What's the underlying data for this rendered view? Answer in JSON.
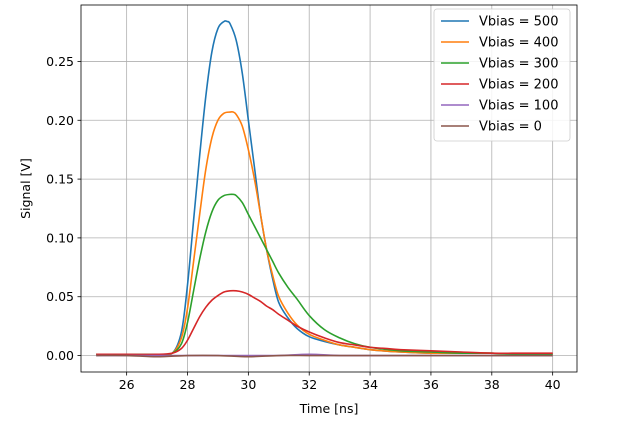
{
  "chart_data": {
    "type": "line",
    "title": "",
    "xlabel": "Time [ns]",
    "ylabel": "Signal [V]",
    "xlim": [
      24.5,
      40.8
    ],
    "ylim": [
      -0.014,
      0.298
    ],
    "xticks": [
      26,
      28,
      30,
      32,
      34,
      36,
      38,
      40
    ],
    "yticks": [
      0.0,
      0.05,
      0.1,
      0.15,
      0.2,
      0.25
    ],
    "ytick_labels": [
      "0.00",
      "0.05",
      "0.10",
      "0.15",
      "0.20",
      "0.25"
    ],
    "grid": true,
    "legend_position": "top-right",
    "series": [
      {
        "name": "Vbias = 500",
        "color": "#1f77b4",
        "x": [
          25.0,
          26.0,
          27.0,
          27.5,
          27.8,
          28.0,
          28.2,
          28.4,
          28.6,
          28.8,
          29.0,
          29.2,
          29.3,
          29.4,
          29.6,
          29.8,
          30.0,
          30.2,
          30.4,
          30.6,
          30.8,
          31.0,
          31.3,
          31.6,
          32.0,
          32.5,
          33.0,
          33.5,
          34.0,
          35.0,
          36.0,
          37.0,
          38.0,
          39.0,
          40.0
        ],
        "y": [
          0.001,
          0.001,
          0.001,
          0.002,
          0.02,
          0.06,
          0.115,
          0.17,
          0.22,
          0.258,
          0.278,
          0.284,
          0.284,
          0.282,
          0.268,
          0.24,
          0.2,
          0.16,
          0.12,
          0.09,
          0.065,
          0.045,
          0.032,
          0.023,
          0.016,
          0.012,
          0.009,
          0.007,
          0.005,
          0.003,
          0.002,
          0.002,
          0.002,
          0.001,
          0.001
        ]
      },
      {
        "name": "Vbias = 400",
        "color": "#ff7f0e",
        "x": [
          25.0,
          26.0,
          27.0,
          27.5,
          27.8,
          28.0,
          28.2,
          28.4,
          28.6,
          28.8,
          29.0,
          29.2,
          29.4,
          29.5,
          29.6,
          29.8,
          30.0,
          30.2,
          30.4,
          30.6,
          30.8,
          31.0,
          31.3,
          31.6,
          32.0,
          32.5,
          33.0,
          33.5,
          34.0,
          35.0,
          36.0,
          37.0,
          38.0,
          39.0,
          40.0
        ],
        "y": [
          0.001,
          0.001,
          0.001,
          0.002,
          0.015,
          0.04,
          0.08,
          0.12,
          0.158,
          0.185,
          0.2,
          0.206,
          0.207,
          0.207,
          0.205,
          0.195,
          0.175,
          0.15,
          0.12,
          0.09,
          0.068,
          0.05,
          0.036,
          0.026,
          0.018,
          0.013,
          0.009,
          0.007,
          0.005,
          0.003,
          0.002,
          0.002,
          0.002,
          0.001,
          0.001
        ]
      },
      {
        "name": "Vbias = 300",
        "color": "#2ca02c",
        "x": [
          25.0,
          26.0,
          27.0,
          27.5,
          27.8,
          28.0,
          28.2,
          28.4,
          28.6,
          28.8,
          29.0,
          29.2,
          29.4,
          29.5,
          29.6,
          29.8,
          30.0,
          30.2,
          30.4,
          30.6,
          30.8,
          31.0,
          31.3,
          31.6,
          32.0,
          32.5,
          33.0,
          33.5,
          34.0,
          35.0,
          36.0,
          37.0,
          38.0,
          39.0,
          40.0
        ],
        "y": [
          0.001,
          0.001,
          0.001,
          0.002,
          0.01,
          0.028,
          0.055,
          0.082,
          0.105,
          0.122,
          0.132,
          0.136,
          0.137,
          0.137,
          0.136,
          0.13,
          0.12,
          0.11,
          0.1,
          0.09,
          0.08,
          0.07,
          0.058,
          0.048,
          0.034,
          0.022,
          0.015,
          0.01,
          0.007,
          0.004,
          0.003,
          0.002,
          0.002,
          0.001,
          0.001
        ]
      },
      {
        "name": "Vbias = 200",
        "color": "#d62728",
        "x": [
          25.0,
          26.0,
          27.0,
          27.5,
          27.8,
          28.0,
          28.2,
          28.4,
          28.6,
          28.8,
          29.0,
          29.2,
          29.4,
          29.6,
          29.8,
          30.0,
          30.2,
          30.4,
          30.6,
          30.8,
          31.0,
          31.3,
          31.6,
          32.0,
          32.5,
          33.0,
          33.5,
          34.0,
          34.5,
          35.0,
          36.0,
          37.0,
          38.0,
          39.0,
          40.0
        ],
        "y": [
          0.001,
          0.001,
          0.001,
          0.002,
          0.006,
          0.013,
          0.023,
          0.033,
          0.041,
          0.047,
          0.051,
          0.054,
          0.055,
          0.055,
          0.054,
          0.052,
          0.049,
          0.046,
          0.042,
          0.039,
          0.035,
          0.03,
          0.025,
          0.02,
          0.015,
          0.011,
          0.009,
          0.007,
          0.006,
          0.005,
          0.004,
          0.003,
          0.002,
          0.002,
          0.002
        ]
      },
      {
        "name": "Vbias = 100",
        "color": "#9467bd",
        "x": [
          25.0,
          26.0,
          27.0,
          28.0,
          29.0,
          30.0,
          31.0,
          32.0,
          33.0,
          34.0,
          35.0,
          36.0,
          37.0,
          38.0,
          39.0,
          40.0
        ],
        "y": [
          0.0,
          0.0,
          0.0,
          0.0,
          0.0,
          0.0,
          0.0,
          0.001,
          0.0,
          0.0,
          0.0,
          0.0,
          0.0,
          0.0,
          0.0,
          0.0
        ]
      },
      {
        "name": "Vbias = 0",
        "color": "#8c564b",
        "x": [
          25.0,
          26.0,
          27.0,
          28.0,
          29.0,
          30.0,
          31.0,
          32.0,
          33.0,
          34.0,
          35.0,
          36.0,
          37.0,
          38.0,
          39.0,
          40.0
        ],
        "y": [
          0.0,
          0.0,
          -0.001,
          0.0,
          0.0,
          -0.001,
          0.0,
          0.0,
          0.0,
          0.0,
          0.0,
          0.0,
          0.0,
          0.0,
          0.0,
          0.0
        ]
      }
    ]
  }
}
